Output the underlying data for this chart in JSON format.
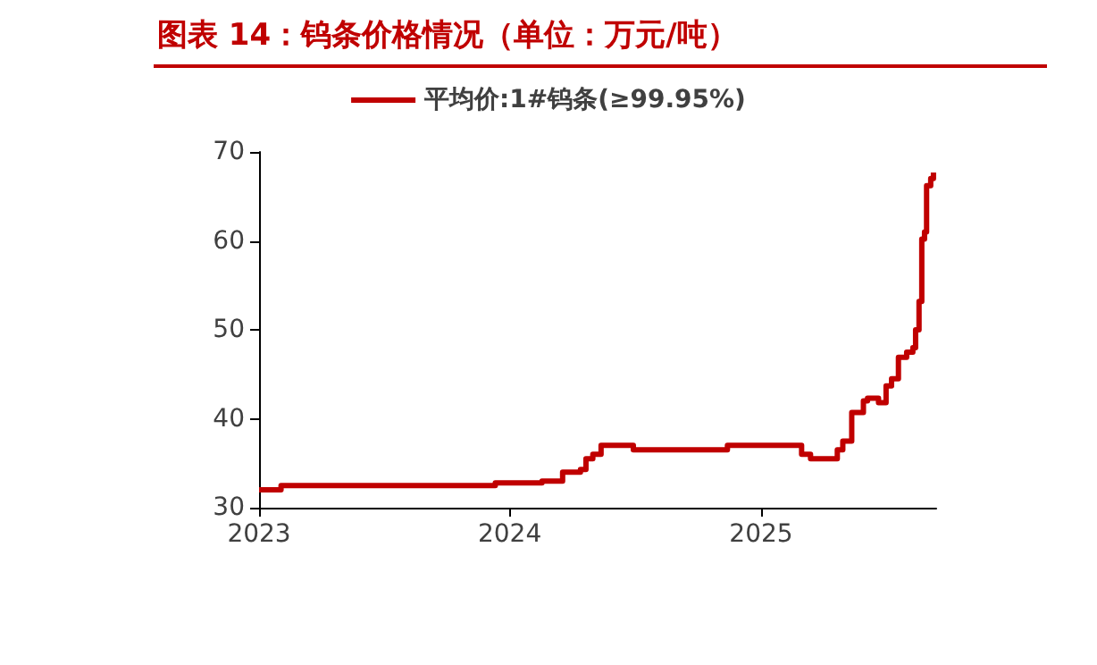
{
  "chart_data": {
    "type": "step",
    "title": "图表 14：钨条价格情况（单位：万元/吨）",
    "x": [
      "2023-01-01",
      "2023-02-02",
      "2023-12-11",
      "2024-02-17",
      "2024-03-18",
      "2024-04-13",
      "2024-04-21",
      "2024-05-01",
      "2024-05-13",
      "2024-06-29",
      "2024-11-13",
      "2025-03-01",
      "2025-03-14",
      "2025-04-22",
      "2025-04-30",
      "2025-05-13",
      "2025-05-30",
      "2025-06-05",
      "2025-06-21",
      "2025-07-02",
      "2025-07-10",
      "2025-07-20",
      "2025-08-01",
      "2025-08-10",
      "2025-08-14",
      "2025-08-19",
      "2025-08-23",
      "2025-08-27",
      "2025-08-30",
      "2025-09-05",
      "2025-09-09"
    ],
    "series": [
      {
        "name": "平均价:1#钨条(≥99.95%)",
        "color": "#c00000",
        "values": [
          32,
          32.5,
          32.8,
          33,
          34,
          34.3,
          35.5,
          36,
          37,
          36.5,
          37,
          36,
          35.5,
          36.5,
          37.5,
          40.7,
          42,
          42.3,
          41.8,
          43.7,
          44.5,
          46.9,
          47.5,
          48,
          50,
          53.2,
          60.2,
          61,
          66.2,
          67,
          67.7
        ]
      }
    ],
    "xlim": [
      "2023",
      "2025-09-13"
    ],
    "xticks": [
      "2023",
      "2024",
      "2025"
    ],
    "ylim": [
      30,
      70
    ],
    "yticks": [
      30,
      40,
      50,
      60,
      70
    ],
    "grid": false,
    "legend": "top",
    "marker": "none",
    "line_style": "solid"
  }
}
